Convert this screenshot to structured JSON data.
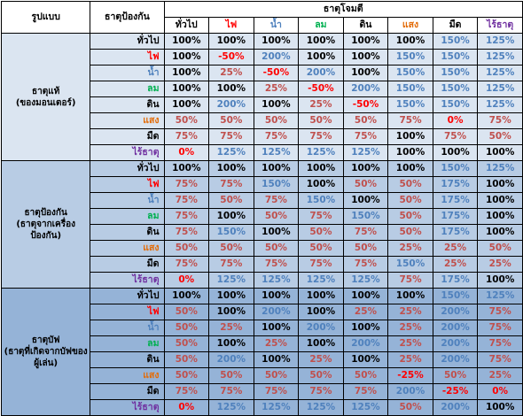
{
  "header": {
    "col_form": "รูปแบบ",
    "col_defense": "ธาตุป้องกัน",
    "col_attack": "ธาตุโจมตี"
  },
  "attack_elements": [
    {
      "label": "ทั่วไป",
      "color": "#000000"
    },
    {
      "label": "ไฟ",
      "color": "#ff0000"
    },
    {
      "label": "น้ำ",
      "color": "#4f81bd"
    },
    {
      "label": "ลม",
      "color": "#00b050"
    },
    {
      "label": "ดิน",
      "color": "#000000"
    },
    {
      "label": "แสง",
      "color": "#e36c09"
    },
    {
      "label": "มืด",
      "color": "#000000"
    },
    {
      "label": "ไร้ธาตุ",
      "color": "#7030a0"
    }
  ],
  "defense_elements": [
    {
      "label": "ทั่วไป",
      "color": "#000000"
    },
    {
      "label": "ไฟ",
      "color": "#ff0000"
    },
    {
      "label": "น้ำ",
      "color": "#4f81bd"
    },
    {
      "label": "ลม",
      "color": "#00b050"
    },
    {
      "label": "ดิน",
      "color": "#000000"
    },
    {
      "label": "แสง",
      "color": "#e36c09"
    },
    {
      "label": "มืด",
      "color": "#000000"
    },
    {
      "label": "ไร้ธาตุ",
      "color": "#7030a0"
    }
  ],
  "groups": [
    {
      "label": "ธาตุแท้\n(ของมอนเตอร์)",
      "bg": "#dbe5f1",
      "rows": [
        [
          "100%",
          "100%",
          "100%",
          "100%",
          "100%",
          "100%",
          "150%",
          "125%"
        ],
        [
          "100%",
          "-50%",
          "200%",
          "100%",
          "100%",
          "150%",
          "150%",
          "125%"
        ],
        [
          "100%",
          "25%",
          "-50%",
          "200%",
          "100%",
          "150%",
          "150%",
          "125%"
        ],
        [
          "100%",
          "100%",
          "25%",
          "-50%",
          "200%",
          "150%",
          "150%",
          "125%"
        ],
        [
          "100%",
          "200%",
          "100%",
          "25%",
          "-50%",
          "150%",
          "150%",
          "125%"
        ],
        [
          "50%",
          "50%",
          "50%",
          "50%",
          "50%",
          "75%",
          "0%",
          "75%"
        ],
        [
          "75%",
          "75%",
          "75%",
          "75%",
          "75%",
          "100%",
          "75%",
          "50%"
        ],
        [
          "0%",
          "125%",
          "125%",
          "125%",
          "125%",
          "100%",
          "100%",
          "100%"
        ]
      ]
    },
    {
      "label": "ธาตุป้องกัน\n(ธาตุจากเครื่องป้องกัน)",
      "bg": "#b8cce4",
      "rows": [
        [
          "100%",
          "100%",
          "100%",
          "100%",
          "100%",
          "100%",
          "150%",
          "125%"
        ],
        [
          "75%",
          "75%",
          "150%",
          "100%",
          "50%",
          "50%",
          "175%",
          "100%"
        ],
        [
          "75%",
          "50%",
          "75%",
          "150%",
          "100%",
          "50%",
          "175%",
          "100%"
        ],
        [
          "75%",
          "100%",
          "50%",
          "75%",
          "150%",
          "50%",
          "175%",
          "100%"
        ],
        [
          "75%",
          "150%",
          "100%",
          "50%",
          "75%",
          "50%",
          "175%",
          "100%"
        ],
        [
          "50%",
          "50%",
          "50%",
          "50%",
          "50%",
          "25%",
          "25%",
          "50%"
        ],
        [
          "75%",
          "75%",
          "75%",
          "75%",
          "75%",
          "150%",
          "25%",
          "25%"
        ],
        [
          "0%",
          "125%",
          "125%",
          "125%",
          "125%",
          "75%",
          "175%",
          "100%"
        ]
      ]
    },
    {
      "label": "ธาตุบัฟ\n(ธาตุที่เกิดจากบัฟของผู้เล่น)",
      "bg": "#95b3d7",
      "rows": [
        [
          "100%",
          "100%",
          "100%",
          "100%",
          "100%",
          "100%",
          "150%",
          "125%"
        ],
        [
          "50%",
          "100%",
          "200%",
          "100%",
          "25%",
          "25%",
          "200%",
          "75%"
        ],
        [
          "50%",
          "25%",
          "100%",
          "200%",
          "100%",
          "25%",
          "200%",
          "75%"
        ],
        [
          "50%",
          "100%",
          "25%",
          "100%",
          "200%",
          "25%",
          "200%",
          "75%"
        ],
        [
          "50%",
          "200%",
          "100%",
          "25%",
          "100%",
          "25%",
          "200%",
          "75%"
        ],
        [
          "50%",
          "50%",
          "50%",
          "50%",
          "50%",
          "-25%",
          "50%",
          "25%"
        ],
        [
          "75%",
          "75%",
          "75%",
          "75%",
          "75%",
          "200%",
          "-25%",
          "0%"
        ],
        [
          "0%",
          "125%",
          "125%",
          "125%",
          "125%",
          "50%",
          "200%",
          "100%"
        ]
      ]
    }
  ]
}
